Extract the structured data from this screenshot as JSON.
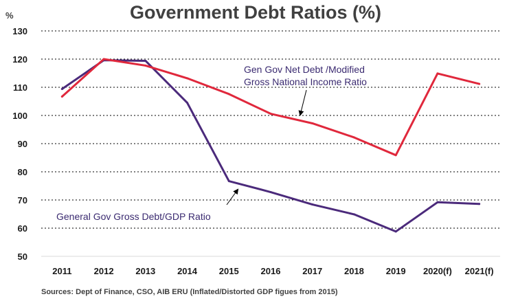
{
  "chart_data": {
    "type": "line",
    "title": "Government Debt Ratios (%)",
    "ylabel": "%",
    "xlabel": "",
    "categories": [
      "2011",
      "2012",
      "2013",
      "2014",
      "2015",
      "2016",
      "2017",
      "2018",
      "2019",
      "2020(f)",
      "2021(f)"
    ],
    "ylim": [
      50,
      130
    ],
    "yticks": [
      50,
      60,
      70,
      80,
      90,
      100,
      110,
      120,
      130
    ],
    "grid": "horizontal",
    "series": [
      {
        "name": "General Gov Gross Debt/GDP Ratio",
        "color": "#4b2a7b",
        "values": [
          109.4,
          119.6,
          119.4,
          104.5,
          76.7,
          72.8,
          68.4,
          64.9,
          58.8,
          69.2,
          68.6
        ]
      },
      {
        "name": "Gen Gov Net Debt /Modified Gross National Income Ratio",
        "color": "#e0283c",
        "values": [
          106.7,
          120.0,
          117.7,
          113.2,
          107.6,
          100.6,
          97.2,
          92.2,
          85.9,
          114.9,
          111.2
        ]
      }
    ],
    "annotations": {
      "red_label_line1": "Gen Gov Net Debt /Modified",
      "red_label_line2": "Gross National Income Ratio",
      "purple_label": "General Gov Gross Debt/GDP Ratio"
    },
    "source": "Sources: Dept of Finance, CSO, AIB ERU (Inflated/Distorted GDP figues from 2015)"
  }
}
